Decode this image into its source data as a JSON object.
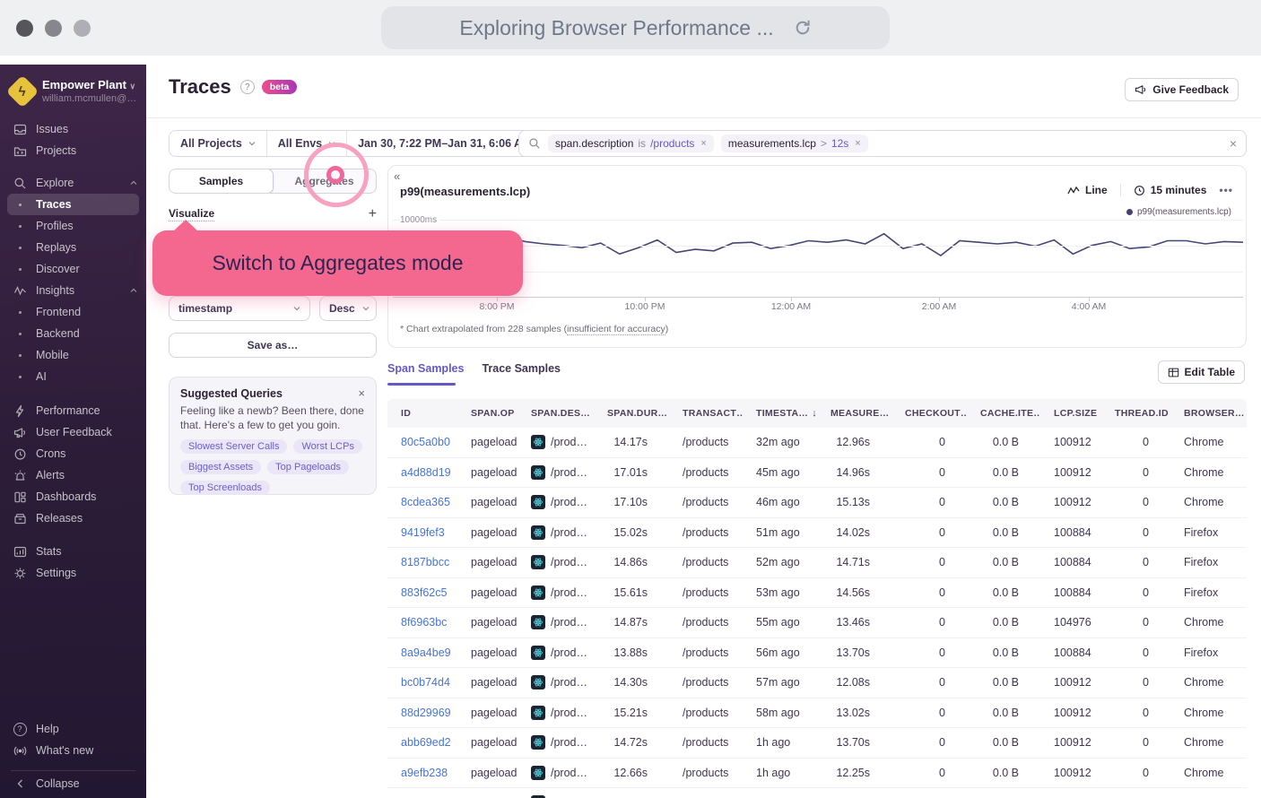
{
  "browser": {
    "title": "Exploring Browser Performance ..."
  },
  "sidebar": {
    "org_name": "Empower Plant",
    "org_email": "william.mcmullen@…",
    "items": [
      {
        "label": "Issues"
      },
      {
        "label": "Projects"
      },
      {
        "label": "Explore"
      },
      {
        "label": "Traces"
      },
      {
        "label": "Profiles"
      },
      {
        "label": "Replays"
      },
      {
        "label": "Discover"
      },
      {
        "label": "Insights"
      },
      {
        "label": "Frontend"
      },
      {
        "label": "Backend"
      },
      {
        "label": "Mobile"
      },
      {
        "label": "AI"
      },
      {
        "label": "Performance"
      },
      {
        "label": "User Feedback"
      },
      {
        "label": "Crons"
      },
      {
        "label": "Alerts"
      },
      {
        "label": "Dashboards"
      },
      {
        "label": "Releases"
      },
      {
        "label": "Stats"
      },
      {
        "label": "Settings"
      }
    ],
    "footer": [
      {
        "label": "Help"
      },
      {
        "label": "What's new"
      },
      {
        "label": "Collapse"
      }
    ]
  },
  "header": {
    "title": "Traces",
    "badge": "beta",
    "feedback_label": "Give Feedback"
  },
  "filters": {
    "projects": "All Projects",
    "envs": "All Envs",
    "date_range": "Jan 30, 7:22 PM–Jan 31, 6:06 AM"
  },
  "search": {
    "chips": [
      {
        "key": "span.description",
        "op": "is",
        "value": "/products"
      },
      {
        "key": "measurements.lcp",
        "op": ">",
        "value": "12s"
      }
    ]
  },
  "panel": {
    "tab_samples": "Samples",
    "tab_aggregates": "Aggregates",
    "visualize_label": "Visualize",
    "sort_field": "timestamp",
    "sort_dir": "Desc",
    "save_as": "Save as…",
    "suggested": {
      "title": "Suggested Queries",
      "body": "Feeling like a newb? Been there, done that. Here's a few to get you goin.",
      "pills": [
        "Slowest Server Calls",
        "Worst LCPs",
        "Biggest Assets",
        "Top Pageloads",
        "Top Screenloads"
      ]
    }
  },
  "annotation": {
    "text": "Switch to Aggregates mode"
  },
  "chart": {
    "title": "p99(measurements.lcp)",
    "type_label": "Line",
    "interval_label": "15 minutes",
    "legend": "p99(measurements.lcp)",
    "y_top_label": "10000ms",
    "x_labels": [
      "8:00 PM",
      "10:00 PM",
      "12:00 AM",
      "2:00 AM",
      "4:00 AM"
    ],
    "footnote_prefix": "* Chart extrapolated from 228 samples (",
    "footnote_link": "insufficient for accuracy",
    "footnote_suffix": ")",
    "line_color": "#444674",
    "points": [
      0.3,
      0.3,
      0.29,
      0.31,
      0.34,
      0.3,
      0.22,
      0.28,
      0.31,
      0.33,
      0.36,
      0.3,
      0.44,
      0.36,
      0.26,
      0.42,
      0.38,
      0.4,
      0.3,
      0.29,
      0.37,
      0.33,
      0.27,
      0.29,
      0.26,
      0.31,
      0.18,
      0.37,
      0.31,
      0.46,
      0.27,
      0.29,
      0.31,
      0.29,
      0.34,
      0.26,
      0.44,
      0.33,
      0.28,
      0.37,
      0.35,
      0.27,
      0.27,
      0.31,
      0.28,
      0.29
    ]
  },
  "table": {
    "tab_span": "Span Samples",
    "tab_trace": "Trace Samples",
    "edit_label": "Edit Table",
    "columns": [
      "ID",
      "SPAN.OP",
      "SPAN.DES…",
      "SPAN.DUR…",
      "TRANSACT…",
      "TIMESTA…",
      "MEASURE…",
      "CHECKOUT…",
      "CACHE.ITE…",
      "LCP.SIZE",
      "THREAD.ID",
      "BROWSER…"
    ],
    "rows": [
      {
        "id": "80c5a0b0",
        "op": "pageload",
        "desc": "/prod…",
        "dur": "14.17s",
        "txn": "/products",
        "time": "32m ago",
        "measure": "12.96s",
        "checkout": "0",
        "cache": "0.0 B",
        "lcp": "100912",
        "thread": "0",
        "browser": "Chrome"
      },
      {
        "id": "a4d88d19",
        "op": "pageload",
        "desc": "/prod…",
        "dur": "17.01s",
        "txn": "/products",
        "time": "45m ago",
        "measure": "14.96s",
        "checkout": "0",
        "cache": "0.0 B",
        "lcp": "100912",
        "thread": "0",
        "browser": "Chrome"
      },
      {
        "id": "8cdea365",
        "op": "pageload",
        "desc": "/prod…",
        "dur": "17.10s",
        "txn": "/products",
        "time": "46m ago",
        "measure": "15.13s",
        "checkout": "0",
        "cache": "0.0 B",
        "lcp": "100912",
        "thread": "0",
        "browser": "Chrome"
      },
      {
        "id": "9419fef3",
        "op": "pageload",
        "desc": "/prod…",
        "dur": "15.02s",
        "txn": "/products",
        "time": "51m ago",
        "measure": "14.02s",
        "checkout": "0",
        "cache": "0.0 B",
        "lcp": "100884",
        "thread": "0",
        "browser": "Firefox"
      },
      {
        "id": "8187bbcc",
        "op": "pageload",
        "desc": "/prod…",
        "dur": "14.86s",
        "txn": "/products",
        "time": "52m ago",
        "measure": "14.71s",
        "checkout": "0",
        "cache": "0.0 B",
        "lcp": "100884",
        "thread": "0",
        "browser": "Firefox"
      },
      {
        "id": "883f62c5",
        "op": "pageload",
        "desc": "/prod…",
        "dur": "15.61s",
        "txn": "/products",
        "time": "53m ago",
        "measure": "14.56s",
        "checkout": "0",
        "cache": "0.0 B",
        "lcp": "100884",
        "thread": "0",
        "browser": "Firefox"
      },
      {
        "id": "8f6963bc",
        "op": "pageload",
        "desc": "/prod…",
        "dur": "14.87s",
        "txn": "/products",
        "time": "55m ago",
        "measure": "13.46s",
        "checkout": "0",
        "cache": "0.0 B",
        "lcp": "104976",
        "thread": "0",
        "browser": "Chrome"
      },
      {
        "id": "8a9a4be9",
        "op": "pageload",
        "desc": "/prod…",
        "dur": "13.88s",
        "txn": "/products",
        "time": "56m ago",
        "measure": "13.70s",
        "checkout": "0",
        "cache": "0.0 B",
        "lcp": "100884",
        "thread": "0",
        "browser": "Firefox"
      },
      {
        "id": "bc0b74d4",
        "op": "pageload",
        "desc": "/prod…",
        "dur": "14.30s",
        "txn": "/products",
        "time": "57m ago",
        "measure": "12.08s",
        "checkout": "0",
        "cache": "0.0 B",
        "lcp": "100912",
        "thread": "0",
        "browser": "Chrome"
      },
      {
        "id": "88d29969",
        "op": "pageload",
        "desc": "/prod…",
        "dur": "15.21s",
        "txn": "/products",
        "time": "58m ago",
        "measure": "13.02s",
        "checkout": "0",
        "cache": "0.0 B",
        "lcp": "100912",
        "thread": "0",
        "browser": "Chrome"
      },
      {
        "id": "abb69ed2",
        "op": "pageload",
        "desc": "/prod…",
        "dur": "14.72s",
        "txn": "/products",
        "time": "1h ago",
        "measure": "13.70s",
        "checkout": "0",
        "cache": "0.0 B",
        "lcp": "100912",
        "thread": "0",
        "browser": "Chrome"
      },
      {
        "id": "a9efb238",
        "op": "pageload",
        "desc": "/prod…",
        "dur": "12.66s",
        "txn": "/products",
        "time": "1h ago",
        "measure": "12.25s",
        "checkout": "0",
        "cache": "0.0 B",
        "lcp": "100912",
        "thread": "0",
        "browser": "Chrome"
      }
    ],
    "partial_row": true
  }
}
